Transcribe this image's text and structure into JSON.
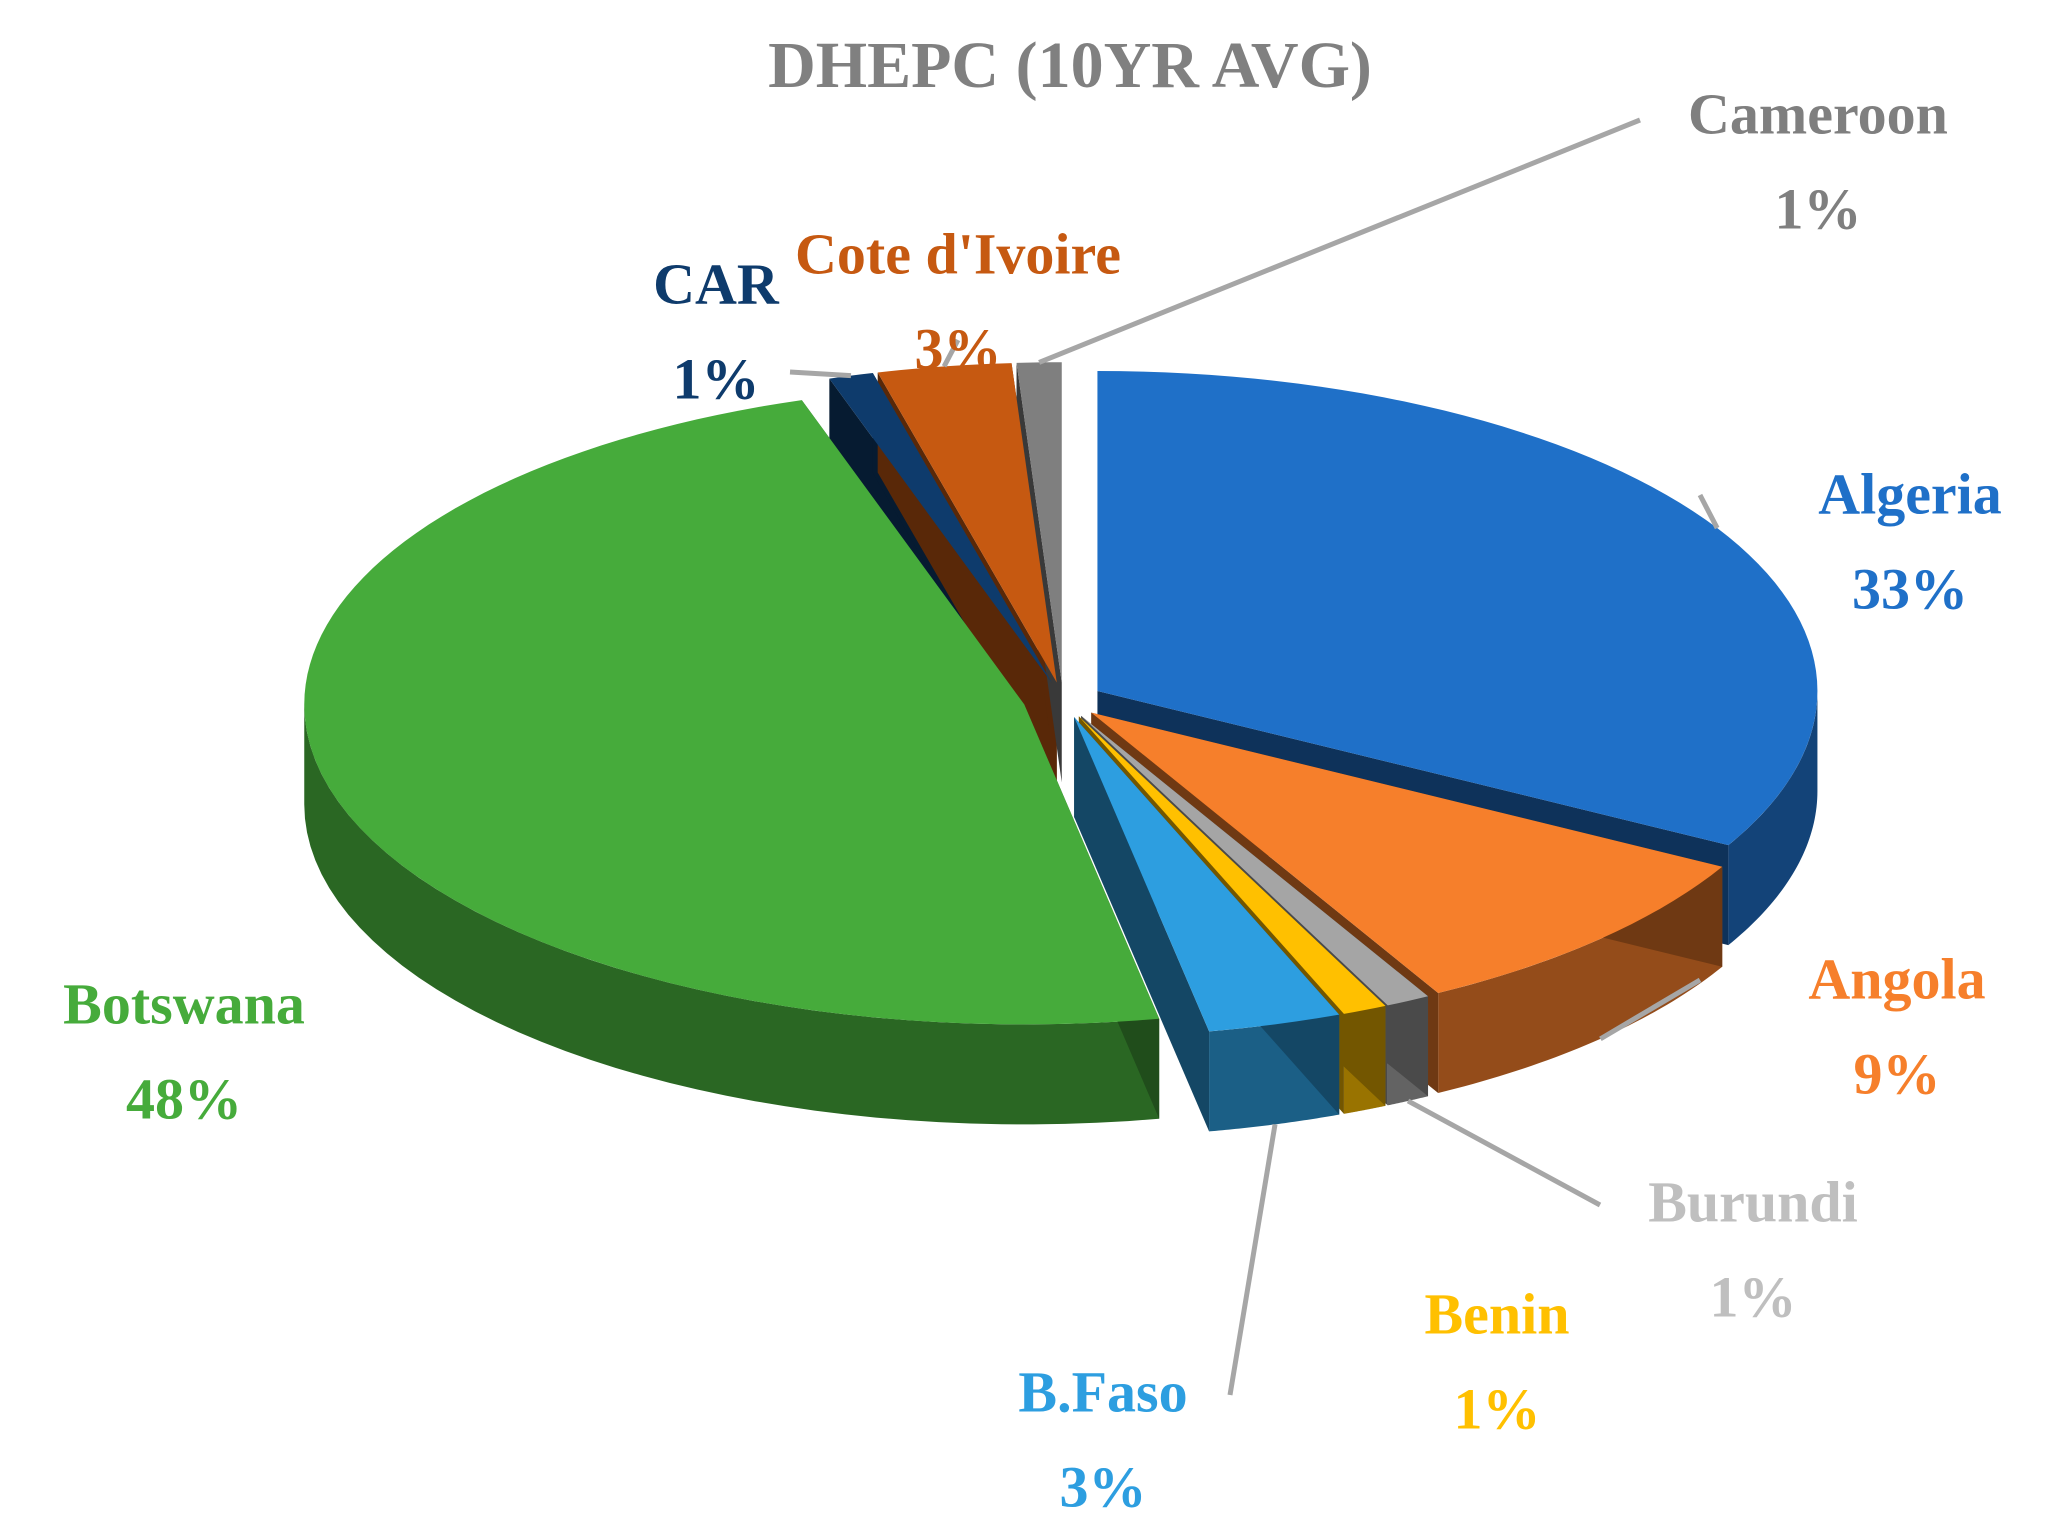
{
  "chart_data": {
    "type": "pie",
    "title": "DHEPC (10YR AVG)",
    "categories": [
      "Algeria",
      "Angola",
      "Burundi",
      "Benin",
      "B.Faso",
      "Botswana",
      "CAR",
      "Cote d'Ivoire",
      "Cameroon"
    ],
    "values": [
      33,
      9,
      1,
      1,
      3,
      48,
      1,
      3,
      1
    ],
    "value_labels": [
      "33%",
      "9%",
      "1%",
      "1%",
      "3%",
      "48%",
      "1%",
      "3%",
      "1%"
    ],
    "colors": [
      "#1f70c8",
      "#f67f2b",
      "#a5a5a5",
      "#ffc000",
      "#2d9ee0",
      "#46ab3b",
      "#0e3b6c",
      "#c65911",
      "#7f7f7f"
    ],
    "label_colors": [
      "#1f70c8",
      "#f67f2b",
      "#bfbfbf",
      "#ffc000",
      "#2d9ee0",
      "#46ab3b",
      "#0e3b6c",
      "#c65911",
      "#7f7f7f"
    ]
  }
}
